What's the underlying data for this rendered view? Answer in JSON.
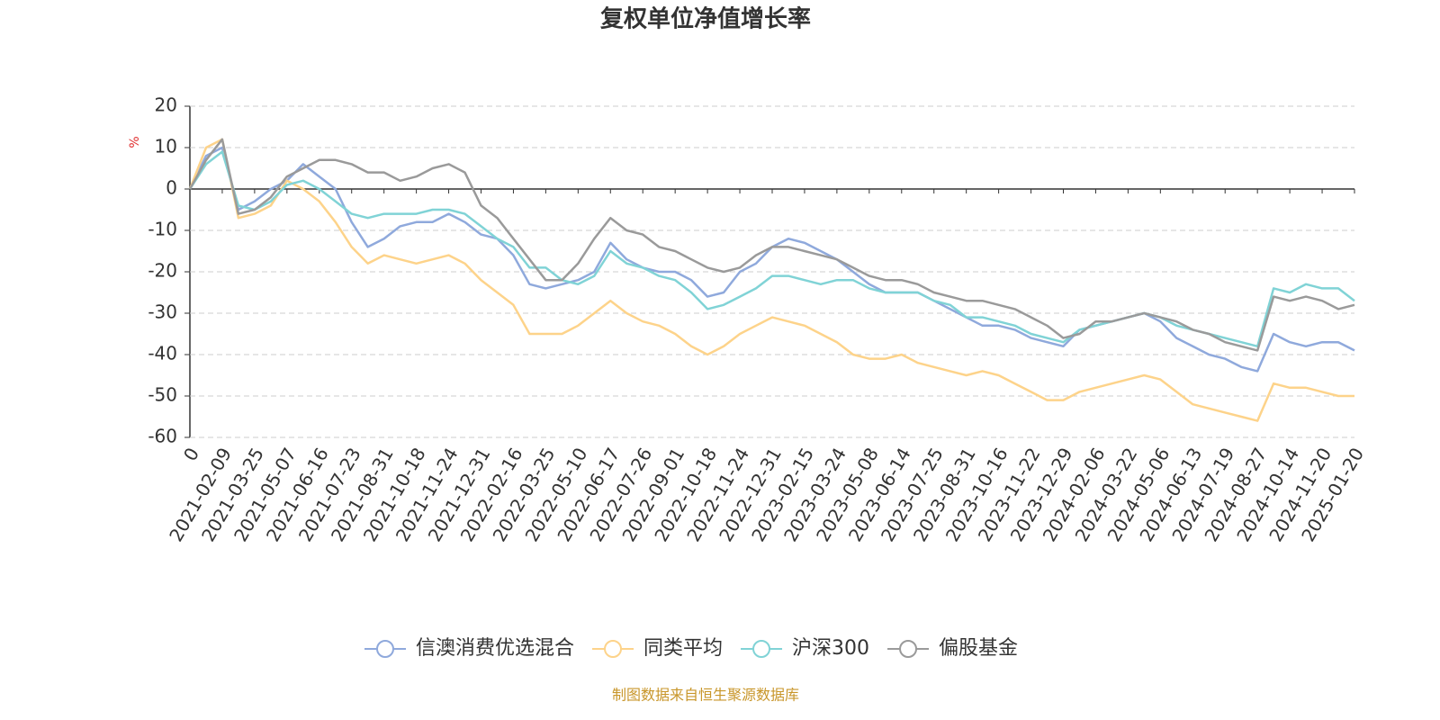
{
  "chart_data": {
    "type": "line",
    "title": "复权单位净值增长率",
    "y_label": "%",
    "source": "制图数据来自恒生聚源数据库",
    "categories": [
      "0",
      null,
      "2021-02-09",
      null,
      "2021-03-25",
      null,
      "2021-05-07",
      null,
      "2021-06-16",
      null,
      "2021-07-23",
      null,
      "2021-08-31",
      null,
      "2021-10-18",
      null,
      "2021-11-24",
      null,
      "2021-12-31",
      null,
      "2022-02-16",
      null,
      "2022-03-25",
      null,
      "2022-05-10",
      null,
      "2022-06-17",
      null,
      "2022-07-26",
      null,
      "2022-09-01",
      null,
      "2022-10-18",
      null,
      "2022-11-24",
      null,
      "2022-12-31",
      null,
      "2023-02-15",
      null,
      "2023-03-24",
      null,
      "2023-05-08",
      null,
      "2023-06-14",
      null,
      "2023-07-25",
      null,
      "2023-08-31",
      null,
      "2023-10-16",
      null,
      "2023-11-22",
      null,
      "2023-12-29",
      null,
      "2024-02-06",
      null,
      "2024-03-22",
      null,
      "2024-05-06",
      null,
      "2024-06-13",
      null,
      "2024-07-19",
      null,
      "2024-08-27",
      null,
      "2024-10-14",
      null,
      "2024-11-20",
      null,
      "2025-01-20"
    ],
    "series": [
      {
        "name": "信澳消费优选混合",
        "color": "#8fa9dc",
        "values": [
          0,
          8,
          10,
          -5,
          -3,
          0,
          2,
          6,
          3,
          0,
          -8,
          -14,
          -12,
          -9,
          -8,
          -8,
          -6,
          -8,
          -11,
          -12,
          -16,
          -23,
          -24,
          -23,
          -22,
          -20,
          -13,
          -17,
          -19,
          -20,
          -20,
          -22,
          -26,
          -25,
          -20,
          -18,
          -14,
          -12,
          -13,
          -15,
          -17,
          -20,
          -23,
          -25,
          -25,
          -25,
          -27,
          -29,
          -31,
          -33,
          -33,
          -34,
          -36,
          -37,
          -38,
          -34,
          -33,
          -32,
          -31,
          -30,
          -32,
          -36,
          -38,
          -40,
          -41,
          -43,
          -44,
          -35,
          -37,
          -38,
          -37,
          -37,
          -39
        ]
      },
      {
        "name": "同类平均",
        "color": "#fdd38a",
        "values": [
          0,
          10,
          12,
          -7,
          -6,
          -4,
          2,
          0,
          -3,
          -8,
          -14,
          -18,
          -16,
          -17,
          -18,
          -17,
          -16,
          -18,
          -22,
          -25,
          -28,
          -35,
          -35,
          -35,
          -33,
          -30,
          -27,
          -30,
          -32,
          -33,
          -35,
          -38,
          -40,
          -38,
          -35,
          -33,
          -31,
          -32,
          -33,
          -35,
          -37,
          -40,
          -41,
          -41,
          -40,
          -42,
          -43,
          -44,
          -45,
          -44,
          -45,
          -47,
          -49,
          -51,
          -51,
          -49,
          -48,
          -47,
          -46,
          -45,
          -46,
          -49,
          -52,
          -53,
          -54,
          -55,
          -56,
          -47,
          -48,
          -48,
          -49,
          -50,
          -50
        ]
      },
      {
        "name": "沪深300",
        "color": "#80d3d6",
        "values": [
          0,
          6,
          9,
          -4,
          -5,
          -3,
          1,
          2,
          0,
          -3,
          -6,
          -7,
          -6,
          -6,
          -6,
          -5,
          -5,
          -6,
          -9,
          -12,
          -14,
          -19,
          -19,
          -22,
          -23,
          -21,
          -15,
          -18,
          -19,
          -21,
          -22,
          -25,
          -29,
          -28,
          -26,
          -24,
          -21,
          -21,
          -22,
          -23,
          -22,
          -22,
          -24,
          -25,
          -25,
          -25,
          -27,
          -28,
          -31,
          -31,
          -32,
          -33,
          -35,
          -36,
          -37,
          -34,
          -33,
          -32,
          -31,
          -30,
          -31,
          -33,
          -34,
          -35,
          -36,
          -37,
          -38,
          -24,
          -25,
          -23,
          -24,
          -24,
          -27
        ]
      },
      {
        "name": "偏股基金",
        "color": "#9a9a9a",
        "values": [
          0,
          7,
          12,
          -6,
          -5,
          -2,
          3,
          5,
          7,
          7,
          6,
          4,
          4,
          2,
          3,
          5,
          6,
          4,
          -4,
          -7,
          -12,
          -17,
          -22,
          -22,
          -18,
          -12,
          -7,
          -10,
          -11,
          -14,
          -15,
          -17,
          -19,
          -20,
          -19,
          -16,
          -14,
          -14,
          -15,
          -16,
          -17,
          -19,
          -21,
          -22,
          -22,
          -23,
          -25,
          -26,
          -27,
          -27,
          -28,
          -29,
          -31,
          -33,
          -36,
          -35,
          -32,
          -32,
          -31,
          -30,
          -31,
          -32,
          -34,
          -35,
          -37,
          -38,
          -39,
          -26,
          -27,
          -26,
          -27,
          -29,
          -28
        ]
      }
    ],
    "ylim": [
      -60,
      20
    ],
    "yticks": [
      -60,
      -50,
      -40,
      -30,
      -20,
      -10,
      0,
      10,
      20
    ],
    "grid": true
  }
}
